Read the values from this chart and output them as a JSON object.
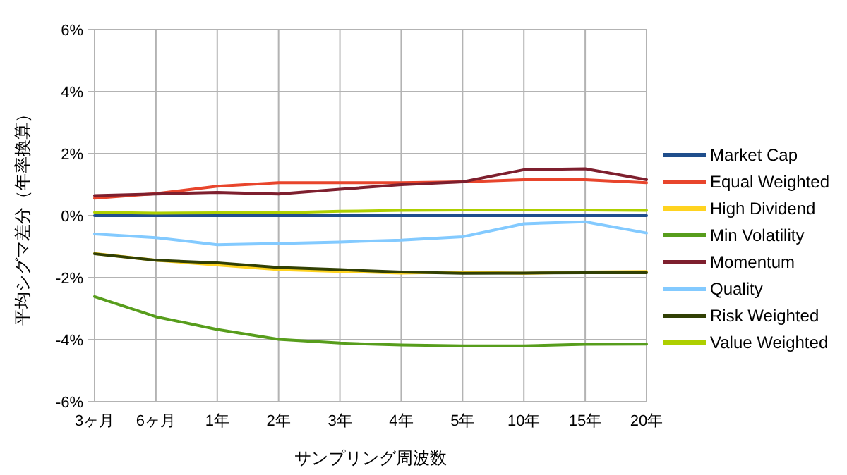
{
  "chart_data": {
    "type": "line",
    "xlabel": "サンプリング周波数",
    "ylabel": "平均シグマ差分（年率換算）",
    "categories": [
      "3ヶ月",
      "6ヶ月",
      "1年",
      "2年",
      "3年",
      "4年",
      "5年",
      "10年",
      "15年",
      "20年"
    ],
    "ylim": [
      -6,
      6
    ],
    "yticks": [
      {
        "value": -6,
        "label": "-6%"
      },
      {
        "value": -4,
        "label": "-4%"
      },
      {
        "value": -2,
        "label": "-2%"
      },
      {
        "value": 0,
        "label": "0%"
      },
      {
        "value": 2,
        "label": "2%"
      },
      {
        "value": 4,
        "label": "4%"
      },
      {
        "value": 6,
        "label": "6%"
      }
    ],
    "grid": true,
    "legend": "right",
    "marker": "none",
    "series": [
      {
        "name": "Market Cap",
        "color": "#1f4e8c",
        "values": [
          0,
          0,
          0,
          0,
          0,
          0,
          0,
          0,
          0,
          0
        ]
      },
      {
        "name": "Equal Weighted",
        "color": "#e8452c",
        "values": [
          0.56,
          0.71,
          0.95,
          1.06,
          1.06,
          1.06,
          1.09,
          1.16,
          1.16,
          1.06
        ]
      },
      {
        "name": "High Dividend",
        "color": "#ffd320",
        "values": [
          -1.22,
          -1.44,
          -1.59,
          -1.74,
          -1.8,
          -1.85,
          -1.82,
          -1.86,
          -1.82,
          -1.8
        ]
      },
      {
        "name": "Min Volatility",
        "color": "#579d1c",
        "values": [
          -2.61,
          -3.26,
          -3.67,
          -3.99,
          -4.11,
          -4.17,
          -4.2,
          -4.2,
          -4.15,
          -4.14
        ]
      },
      {
        "name": "Momentum",
        "color": "#7e1f2e",
        "values": [
          0.65,
          0.7,
          0.75,
          0.7,
          0.85,
          1.0,
          1.09,
          1.48,
          1.51,
          1.16
        ]
      },
      {
        "name": "Quality",
        "color": "#83caff",
        "values": [
          -0.59,
          -0.71,
          -0.94,
          -0.9,
          -0.85,
          -0.79,
          -0.68,
          -0.26,
          -0.2,
          -0.56
        ]
      },
      {
        "name": "Risk Weighted",
        "color": "#314004",
        "values": [
          -1.23,
          -1.44,
          -1.52,
          -1.67,
          -1.74,
          -1.82,
          -1.86,
          -1.85,
          -1.84,
          -1.84
        ]
      },
      {
        "name": "Value Weighted",
        "color": "#aecf00",
        "values": [
          0.11,
          0.08,
          0.09,
          0.09,
          0.14,
          0.17,
          0.18,
          0.18,
          0.18,
          0.17
        ]
      }
    ]
  }
}
